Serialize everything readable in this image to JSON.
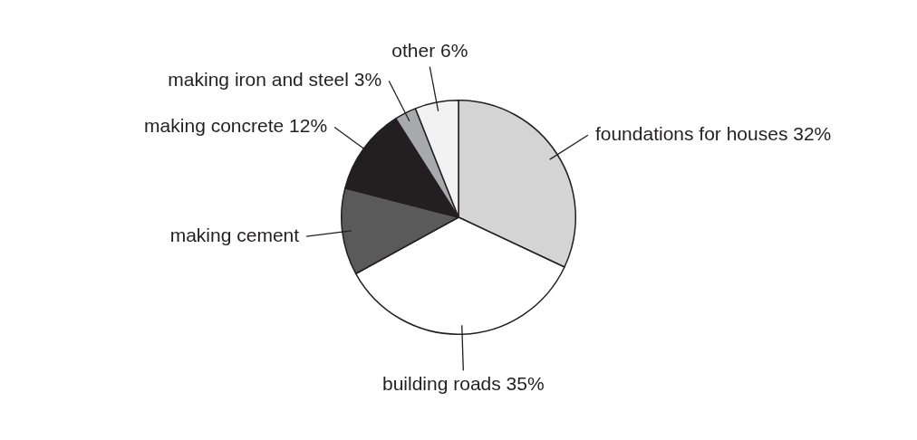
{
  "chart_data": {
    "type": "pie",
    "categories": [
      "foundations for houses",
      "building roads",
      "making cement",
      "making concrete",
      "making iron and steel",
      "other"
    ],
    "values": [
      32,
      35,
      12,
      12,
      3,
      6
    ],
    "value_labels": [
      "32%",
      "35%",
      null,
      "12%",
      "3%",
      "6%"
    ],
    "colors": [
      "#d4d4d4",
      "#ffffff",
      "#5a5a5a",
      "#231f20",
      "#a7a9ac",
      "#f2f2f2"
    ],
    "legend": false
  }
}
